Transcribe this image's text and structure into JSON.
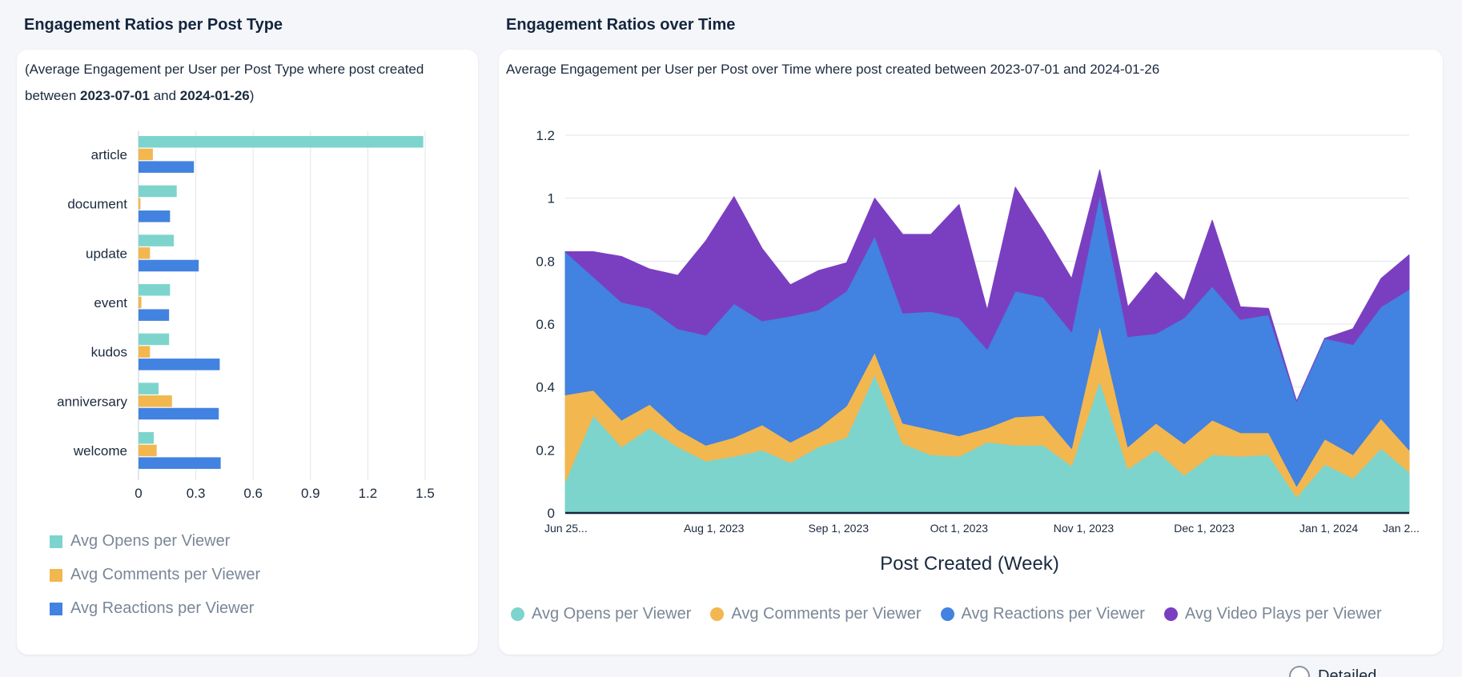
{
  "left_panel": {
    "title": "Engagement Ratios per Post Type",
    "subtitle": {
      "prefix": "(Average Engagement per User per Post Type where post created between ",
      "start_date": "2023-07-01",
      "middle": " and ",
      "end_date": "2024-01-26",
      "suffix": ")"
    }
  },
  "right_panel": {
    "title": "Engagement Ratios over Time",
    "subtitle": "Average Engagement per User per Post over Time where post created between 2023-07-01 and 2024-01-26"
  },
  "detailed_toggle": {
    "label": "Detailed"
  },
  "chart_data": [
    {
      "type": "bar",
      "orientation": "horizontal",
      "categories": [
        "article",
        "document",
        "update",
        "event",
        "kudos",
        "anniversary",
        "welcome"
      ],
      "series": [
        {
          "name": "Avg Opens per Viewer",
          "color": "#7dd4cd",
          "values": [
            1.49,
            0.2,
            0.185,
            0.165,
            0.16,
            0.105,
            0.08
          ]
        },
        {
          "name": "Avg Comments per Viewer",
          "color": "#f2b74f",
          "values": [
            0.075,
            0.01,
            0.06,
            0.015,
            0.06,
            0.175,
            0.095
          ]
        },
        {
          "name": "Avg Reactions per Viewer",
          "color": "#4282e0",
          "values": [
            0.29,
            0.165,
            0.315,
            0.16,
            0.425,
            0.42,
            0.43
          ]
        }
      ],
      "xticks": [
        "0",
        "0.3",
        "0.6",
        "0.9",
        "1.2",
        "1.5"
      ],
      "xlim": [
        0,
        1.6
      ],
      "grid": true,
      "legend": "bottom-left"
    },
    {
      "type": "area",
      "stacked": true,
      "title": "Engagement Ratios over Time",
      "xlabel": "Post Created (Week)",
      "ylabel": "",
      "ylim": [
        0,
        1.2
      ],
      "yticks": [
        "0",
        "0.2",
        "0.4",
        "0.6",
        "0.8",
        "1",
        "1.2"
      ],
      "xticks": [
        {
          "week": 0,
          "label": "Jun 25..."
        },
        {
          "week": 5.286,
          "label": "Aug 1, 2023"
        },
        {
          "week": 9.714,
          "label": "Sep 1, 2023"
        },
        {
          "week": 14,
          "label": "Oct 1, 2023"
        },
        {
          "week": 18.429,
          "label": "Nov 1, 2023"
        },
        {
          "week": 22.714,
          "label": "Dec 1, 2023"
        },
        {
          "week": 27.143,
          "label": "Jan 1, 2024"
        },
        {
          "week": 29.714,
          "label": "Jan 2..."
        }
      ],
      "x": [
        0,
        1,
        2,
        3,
        4,
        5,
        6,
        7,
        8,
        9,
        10,
        11,
        12,
        13,
        14,
        15,
        16,
        17,
        18,
        19,
        20,
        21,
        22,
        23,
        24,
        25,
        26,
        27,
        28,
        29,
        30
      ],
      "series": [
        {
          "name": "Avg Opens per Viewer",
          "color": "#7dd4cd",
          "values": [
            0.1,
            0.31,
            0.21,
            0.27,
            0.21,
            0.165,
            0.18,
            0.2,
            0.16,
            0.21,
            0.24,
            0.44,
            0.22,
            0.185,
            0.18,
            0.225,
            0.215,
            0.215,
            0.15,
            0.42,
            0.14,
            0.2,
            0.12,
            0.185,
            0.18,
            0.185,
            0.05,
            0.155,
            0.11,
            0.205,
            0.13
          ]
        },
        {
          "name": "Avg Comments per Viewer",
          "color": "#f2b74f",
          "values": [
            0.275,
            0.08,
            0.085,
            0.075,
            0.055,
            0.05,
            0.06,
            0.08,
            0.065,
            0.06,
            0.1,
            0.07,
            0.065,
            0.08,
            0.065,
            0.045,
            0.09,
            0.095,
            0.055,
            0.175,
            0.07,
            0.085,
            0.1,
            0.11,
            0.075,
            0.07,
            0.035,
            0.08,
            0.075,
            0.095,
            0.07
          ]
        },
        {
          "name": "Avg Reactions per Viewer",
          "color": "#4282e0",
          "values": [
            0.455,
            0.36,
            0.375,
            0.305,
            0.32,
            0.35,
            0.425,
            0.33,
            0.4,
            0.375,
            0.365,
            0.37,
            0.35,
            0.375,
            0.375,
            0.25,
            0.4,
            0.375,
            0.37,
            0.415,
            0.35,
            0.285,
            0.4,
            0.425,
            0.36,
            0.375,
            0.27,
            0.32,
            0.35,
            0.355,
            0.51
          ]
        },
        {
          "name": "Avg Video Plays per Viewer",
          "color": "#7a3fc1",
          "values": [
            0.0,
            0.08,
            0.145,
            0.125,
            0.17,
            0.3,
            0.34,
            0.23,
            0.1,
            0.125,
            0.09,
            0.12,
            0.25,
            0.245,
            0.36,
            0.125,
            0.33,
            0.21,
            0.17,
            0.08,
            0.095,
            0.195,
            0.055,
            0.21,
            0.04,
            0.02,
            0.0,
            0.0,
            0.05,
            0.09,
            0.11
          ]
        }
      ],
      "grid": true,
      "legend": "bottom"
    }
  ]
}
